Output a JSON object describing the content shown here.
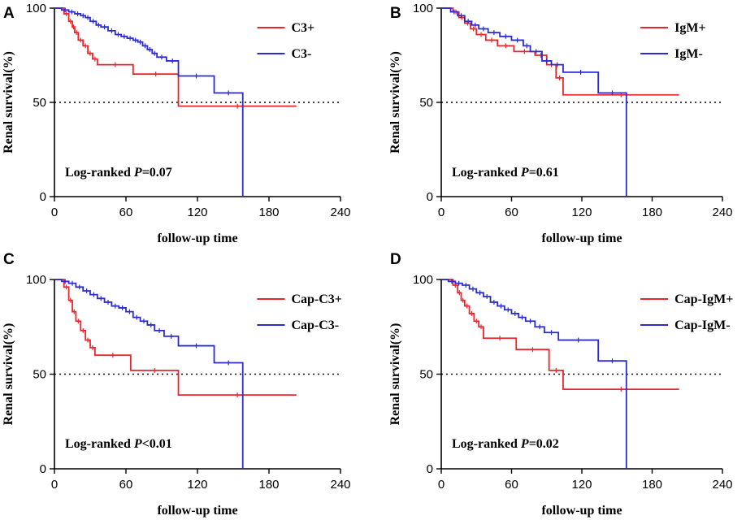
{
  "colors": {
    "series1": "#e8262c",
    "series2": "#2b2bd0",
    "axis": "#000000",
    "reference": "#000000"
  },
  "chart_data": [
    {
      "panel": "A",
      "type": "line",
      "xlabel": "follow-up time",
      "ylabel": "Renal survival(%)",
      "xlim": [
        0,
        240
      ],
      "ylim": [
        0,
        100
      ],
      "xticks": [
        "0",
        "60",
        "120",
        "180",
        "240"
      ],
      "yticks": [
        "0",
        "50",
        "100"
      ],
      "reference_line": 50,
      "annotation": {
        "prefix": "Log-ranked ",
        "p": "P",
        "value": "=0.07"
      },
      "series": [
        {
          "name": "C3+",
          "color": "#e8262c",
          "steps": [
            [
              0,
              100
            ],
            [
              8,
              97
            ],
            [
              12,
              93
            ],
            [
              15,
              90
            ],
            [
              17,
              87
            ],
            [
              20,
              83
            ],
            [
              24,
              80
            ],
            [
              28,
              76
            ],
            [
              32,
              73
            ],
            [
              36,
              70
            ],
            [
              66,
              65
            ],
            [
              104,
              48
            ],
            [
              203,
              48
            ]
          ]
        },
        {
          "name": "C3-",
          "color": "#2b2bd0",
          "steps": [
            [
              0,
              100
            ],
            [
              6,
              99
            ],
            [
              12,
              98
            ],
            [
              17,
              97
            ],
            [
              22,
              96
            ],
            [
              26,
              95
            ],
            [
              30,
              93
            ],
            [
              35,
              91
            ],
            [
              39,
              90
            ],
            [
              45,
              88
            ],
            [
              51,
              86
            ],
            [
              56,
              85
            ],
            [
              61,
              84
            ],
            [
              66,
              83
            ],
            [
              70,
              82
            ],
            [
              74,
              80
            ],
            [
              78,
              78
            ],
            [
              82,
              76
            ],
            [
              86,
              74
            ],
            [
              94,
              72
            ],
            [
              104,
              64
            ],
            [
              134,
              55
            ],
            [
              158,
              0
            ]
          ]
        }
      ]
    },
    {
      "panel": "B",
      "type": "line",
      "xlabel": "follow-up time",
      "ylabel": "Renal survival(%)",
      "xlim": [
        0,
        240
      ],
      "ylim": [
        0,
        100
      ],
      "xticks": [
        "0",
        "60",
        "120",
        "180",
        "240"
      ],
      "yticks": [
        "0",
        "50",
        "100"
      ],
      "reference_line": 50,
      "annotation": {
        "prefix": "Log-ranked ",
        "p": "P",
        "value": "=0.61"
      },
      "series": [
        {
          "name": "IgM+",
          "color": "#e8262c",
          "steps": [
            [
              0,
              100
            ],
            [
              10,
              98
            ],
            [
              15,
              95
            ],
            [
              20,
              92
            ],
            [
              25,
              89
            ],
            [
              30,
              86
            ],
            [
              38,
              83
            ],
            [
              48,
              80
            ],
            [
              62,
              77
            ],
            [
              80,
              75
            ],
            [
              90,
              70
            ],
            [
              98,
              63
            ],
            [
              104,
              54
            ],
            [
              203,
              54
            ]
          ]
        },
        {
          "name": "IgM-",
          "color": "#2b2bd0",
          "steps": [
            [
              0,
              100
            ],
            [
              8,
              98
            ],
            [
              14,
              96
            ],
            [
              20,
              93
            ],
            [
              26,
              91
            ],
            [
              32,
              89
            ],
            [
              40,
              87
            ],
            [
              50,
              85
            ],
            [
              60,
              83
            ],
            [
              70,
              80
            ],
            [
              76,
              77
            ],
            [
              86,
              72
            ],
            [
              94,
              70
            ],
            [
              104,
              66
            ],
            [
              134,
              55
            ],
            [
              158,
              0
            ]
          ]
        }
      ]
    },
    {
      "panel": "C",
      "type": "line",
      "xlabel": "follow-up time",
      "ylabel": "Renal survival(%)",
      "xlim": [
        0,
        240
      ],
      "ylim": [
        0,
        100
      ],
      "xticks": [
        "0",
        "60",
        "120",
        "180",
        "240"
      ],
      "yticks": [
        "0",
        "50",
        "100"
      ],
      "reference_line": 50,
      "annotation": {
        "prefix": "Log-ranked ",
        "p": "P",
        "value": "<0.01"
      },
      "series": [
        {
          "name": "Cap-C3+",
          "color": "#e8262c",
          "steps": [
            [
              0,
              100
            ],
            [
              8,
              96
            ],
            [
              12,
              89
            ],
            [
              15,
              83
            ],
            [
              18,
              78
            ],
            [
              22,
              73
            ],
            [
              26,
              68
            ],
            [
              30,
              64
            ],
            [
              34,
              60
            ],
            [
              64,
              52
            ],
            [
              104,
              39
            ],
            [
              203,
              39
            ]
          ]
        },
        {
          "name": "Cap-C3-",
          "color": "#2b2bd0",
          "steps": [
            [
              0,
              100
            ],
            [
              6,
              99
            ],
            [
              12,
              98
            ],
            [
              18,
              96
            ],
            [
              24,
              94
            ],
            [
              30,
              92
            ],
            [
              36,
              90
            ],
            [
              42,
              88
            ],
            [
              48,
              86
            ],
            [
              54,
              85
            ],
            [
              60,
              83
            ],
            [
              66,
              80
            ],
            [
              72,
              78
            ],
            [
              78,
              76
            ],
            [
              84,
              73
            ],
            [
              92,
              70
            ],
            [
              104,
              65
            ],
            [
              134,
              56
            ],
            [
              158,
              0
            ]
          ]
        }
      ]
    },
    {
      "panel": "D",
      "type": "line",
      "xlabel": "follow-up time",
      "ylabel": "Renal survival(%)",
      "xlim": [
        0,
        240
      ],
      "ylim": [
        0,
        100
      ],
      "xticks": [
        "0",
        "60",
        "120",
        "180",
        "240"
      ],
      "yticks": [
        "0",
        "50",
        "100"
      ],
      "reference_line": 50,
      "annotation": {
        "prefix": "Log-ranked ",
        "p": "P",
        "value": "=0.02"
      },
      "series": [
        {
          "name": "Cap-IgM+",
          "color": "#e8262c",
          "steps": [
            [
              0,
              100
            ],
            [
              10,
              97
            ],
            [
              14,
              93
            ],
            [
              17,
              89
            ],
            [
              20,
              86
            ],
            [
              24,
              82
            ],
            [
              28,
              78
            ],
            [
              32,
              75
            ],
            [
              36,
              69
            ],
            [
              64,
              63
            ],
            [
              92,
              52
            ],
            [
              104,
              42
            ],
            [
              203,
              42
            ]
          ]
        },
        {
          "name": "Cap-IgM-",
          "color": "#2b2bd0",
          "steps": [
            [
              0,
              100
            ],
            [
              6,
              99
            ],
            [
              12,
              98
            ],
            [
              18,
              97
            ],
            [
              24,
              95
            ],
            [
              30,
              93
            ],
            [
              36,
              91
            ],
            [
              42,
              88
            ],
            [
              48,
              86
            ],
            [
              54,
              84
            ],
            [
              60,
              82
            ],
            [
              66,
              80
            ],
            [
              72,
              78
            ],
            [
              80,
              75
            ],
            [
              88,
              72
            ],
            [
              100,
              68
            ],
            [
              134,
              57
            ],
            [
              158,
              0
            ]
          ]
        }
      ]
    }
  ]
}
